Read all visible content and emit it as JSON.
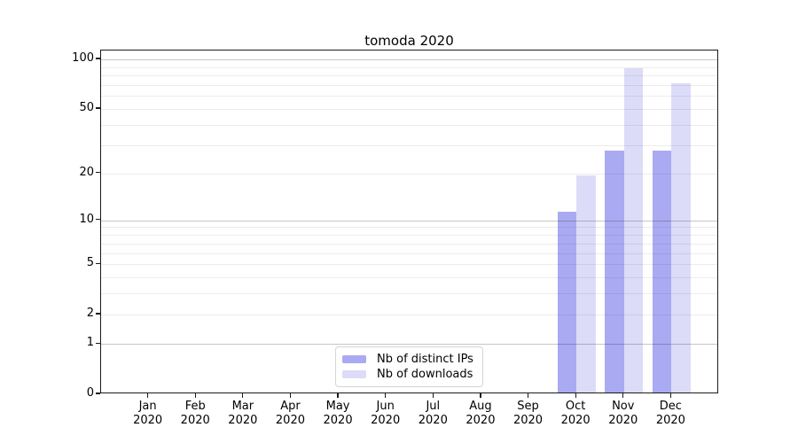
{
  "title": "tomoda 2020",
  "chart_data": {
    "type": "bar",
    "title": "tomoda 2020",
    "categories": [
      "Jan",
      "Feb",
      "Mar",
      "Apr",
      "May",
      "Jun",
      "Jul",
      "Aug",
      "Sep",
      "Oct",
      "Nov",
      "Dec"
    ],
    "x_tick_labels": [
      [
        "Jan",
        "2020"
      ],
      [
        "Feb",
        "2020"
      ],
      [
        "Mar",
        "2020"
      ],
      [
        "Apr",
        "2020"
      ],
      [
        "May",
        "2020"
      ],
      [
        "Jun",
        "2020"
      ],
      [
        "Jul",
        "2020"
      ],
      [
        "Aug",
        "2020"
      ],
      [
        "Sep",
        "2020"
      ],
      [
        "Oct",
        "2020"
      ],
      [
        "Nov",
        "2020"
      ],
      [
        "Dec",
        "2020"
      ]
    ],
    "series": [
      {
        "name": "Nb of distinct IPs",
        "color": "#aaaaf2",
        "values": [
          0,
          0,
          0,
          0,
          0,
          0,
          0,
          0,
          0,
          11,
          27,
          27
        ]
      },
      {
        "name": "Nb of downloads",
        "color": "#dcdcf8",
        "values": [
          0,
          0,
          0,
          0,
          0,
          0,
          0,
          0,
          0,
          19,
          86,
          70
        ]
      }
    ],
    "xlabel": "",
    "ylabel": "",
    "y_scale": "log1p",
    "ylim": [
      0,
      113
    ],
    "y_ticks": [
      0,
      1,
      2,
      5,
      10,
      20,
      50,
      100
    ],
    "grid": {
      "on": true,
      "major_lines": [
        1,
        10,
        100
      ],
      "minor_lines": [
        2,
        3,
        4,
        5,
        6,
        7,
        8,
        9,
        20,
        30,
        40,
        50,
        60,
        70,
        80,
        90
      ]
    },
    "legend": {
      "position": "lower center",
      "visible": true
    }
  },
  "colors": {
    "bar_distinct_ips": "#aaaaf2",
    "bar_downloads": "#dcdcf8",
    "spine": "#1a1a1a",
    "legend_border": "#d4d4d4",
    "background": "#ffffff"
  }
}
